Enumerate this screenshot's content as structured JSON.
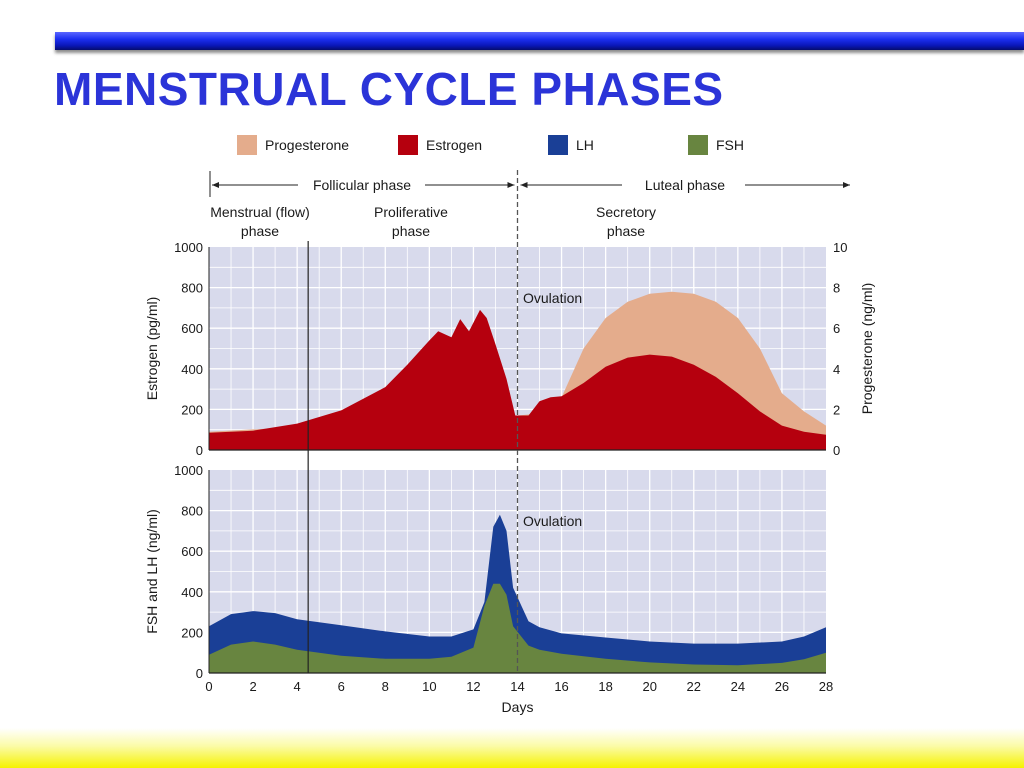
{
  "title": "MENSTRUAL CYCLE PHASES",
  "colors": {
    "title": "#2b34d8",
    "progesterone": "#e4ac8c",
    "estrogen": "#b5000e",
    "lh": "#1a3f96",
    "fsh": "#688540",
    "plot_bg": "#d8daec",
    "grid": "#ffffff"
  },
  "legend": [
    {
      "label": "Progesterone",
      "color": "#e4ac8c"
    },
    {
      "label": "Estrogen",
      "color": "#b5000e"
    },
    {
      "label": "LH",
      "color": "#1a3f96"
    },
    {
      "label": "FSH",
      "color": "#688540"
    }
  ],
  "phases": {
    "follicular": "Follicular phase",
    "luteal": "Luteal phase",
    "menstrual": [
      "Menstrual (flow)",
      "phase"
    ],
    "proliferative": [
      "Proliferative",
      "phase"
    ],
    "secretory": [
      "Secretory",
      "phase"
    ]
  },
  "annotations": {
    "ovulation": "Ovulation"
  },
  "chart_data": [
    {
      "type": "area",
      "panel": "top",
      "ylabel": "Estrogen (pg/ml)",
      "ylabel_right": "Progesterone (ng/ml)",
      "xlim": [
        0,
        28
      ],
      "ylim": [
        0,
        1000
      ],
      "ylim_right": [
        0,
        10
      ],
      "yticks": [
        0,
        200,
        400,
        600,
        800,
        1000
      ],
      "yticks_right": [
        0,
        2,
        4,
        6,
        8,
        10
      ],
      "grid": true,
      "markers": [
        {
          "x": 4.5,
          "style": "solid"
        },
        {
          "x": 14,
          "style": "dashed",
          "label": "Ovulation"
        }
      ],
      "series": [
        {
          "name": "Progesterone",
          "unit": "ng/ml",
          "x": [
            0,
            14,
            15,
            16,
            17,
            18,
            19,
            20,
            21,
            22,
            23,
            24,
            25,
            26,
            27,
            28
          ],
          "y": [
            0.9,
            1.7,
            1.8,
            2.6,
            5.0,
            6.5,
            7.3,
            7.7,
            7.8,
            7.7,
            7.3,
            6.5,
            5.0,
            2.8,
            1.9,
            1.2
          ]
        },
        {
          "name": "Estrogen",
          "unit": "pg/ml",
          "x": [
            0,
            2,
            4,
            6,
            8,
            9,
            10,
            10.4,
            11,
            11.4,
            11.8,
            12.3,
            12.6,
            13,
            13.5,
            13.9,
            14.5,
            15,
            15.5,
            16,
            17,
            18,
            19,
            20,
            21,
            22,
            23,
            24,
            25,
            26,
            27,
            28
          ],
          "y": [
            85,
            95,
            130,
            195,
            310,
            420,
            540,
            585,
            555,
            645,
            585,
            690,
            650,
            520,
            350,
            170,
            170,
            240,
            260,
            265,
            330,
            410,
            455,
            470,
            460,
            420,
            360,
            280,
            190,
            120,
            90,
            75
          ]
        }
      ]
    },
    {
      "type": "area",
      "panel": "bottom",
      "xlabel": "Days",
      "ylabel": "FSH and LH (ng/ml)",
      "xlim": [
        0,
        28
      ],
      "ylim": [
        0,
        1000
      ],
      "xticks": [
        0,
        2,
        4,
        6,
        8,
        10,
        12,
        14,
        16,
        18,
        20,
        22,
        24,
        26,
        28
      ],
      "yticks": [
        0,
        200,
        400,
        600,
        800,
        1000
      ],
      "grid": true,
      "markers": [
        {
          "x": 4.5,
          "style": "solid"
        },
        {
          "x": 14,
          "style": "dashed",
          "label": "Ovulation"
        }
      ],
      "series": [
        {
          "name": "LH",
          "x": [
            0,
            1,
            2,
            3,
            4,
            6,
            8,
            10,
            11,
            12,
            12.5,
            12.9,
            13.2,
            13.5,
            13.8,
            14.5,
            15,
            16,
            18,
            20,
            22,
            24,
            26,
            27,
            28
          ],
          "y": [
            230,
            290,
            305,
            295,
            265,
            235,
            205,
            180,
            180,
            215,
            350,
            720,
            780,
            700,
            420,
            255,
            225,
            195,
            175,
            155,
            145,
            145,
            155,
            180,
            225
          ]
        },
        {
          "name": "FSH",
          "x": [
            0,
            1,
            2,
            3,
            4,
            6,
            8,
            10,
            11,
            12,
            12.5,
            12.9,
            13.2,
            13.5,
            13.8,
            14.5,
            15,
            16,
            18,
            20,
            22,
            24,
            26,
            27,
            28
          ],
          "y": [
            90,
            140,
            155,
            140,
            115,
            85,
            70,
            70,
            80,
            125,
            330,
            440,
            440,
            385,
            230,
            135,
            115,
            95,
            70,
            52,
            42,
            38,
            50,
            68,
            100
          ]
        }
      ]
    }
  ]
}
